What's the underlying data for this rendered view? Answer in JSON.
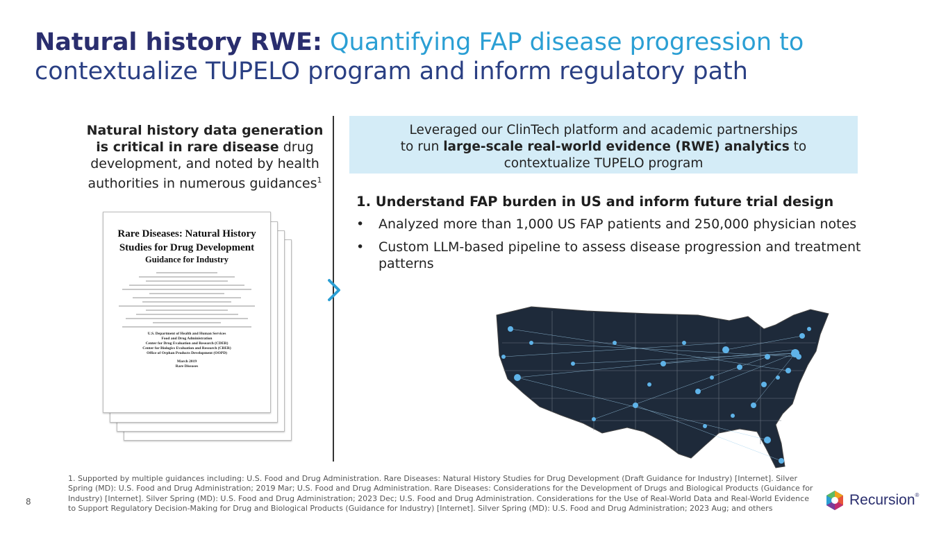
{
  "title": {
    "bold": "Natural history RWE:",
    "line1_rest": " Quantifying FAP disease progression to",
    "line2": "contextualize TUPELO program and inform regulatory path"
  },
  "left_panel": {
    "bold1": "Natural history data generation is critical in rare disease",
    "rest": " drug development, and noted by health authorities in numerous guidances",
    "sup": "1"
  },
  "document": {
    "title": "Rare Diseases: Natural History Studies for Drug Development",
    "subtitle": "Guidance for Industry",
    "footer1": "U.S. Department of Health and Human Services",
    "footer2": "Food and Drug Administration",
    "footer3": "Center for Drug Evaluation and Research (CDER)",
    "footer4": "Center for Biologics Evaluation and Research (CBER)",
    "footer5": "Office of Orphan Products Development (OOPD)",
    "date": "March 2019",
    "category": "Rare Diseases"
  },
  "callout": {
    "line1": "Leveraged our ClinTech platform and academic partnerships",
    "pre": "to run ",
    "bold": "large-scale real-world evidence (RWE) analytics",
    "post": " to",
    "line3": "contextualize TUPELO program"
  },
  "section": {
    "heading": "1. Understand FAP burden in US and inform future trial design",
    "bullets": [
      "Analyzed more than 1,000 US FAP patients and 250,000 physician notes",
      "Custom LLM-based pipeline to assess disease progression and treatment patterns"
    ],
    "bullet_char": "•"
  },
  "footnote": "1. Supported by multiple guidances including: U.S. Food and Drug Administration. Rare Diseases: Natural History Studies for Drug Development (Draft Guidance for Industry) [Internet]. Silver Spring (MD): U.S. Food and Drug Administration; 2019 Mar; U.S. Food and Drug Administration. Rare Diseases: Considerations for the Development of Drugs and Biological Products (Guidance for Industry) [Internet]. Silver Spring (MD): U.S. Food and Drug Administration; 2023 Dec; U.S. Food and Drug Administration. Considerations for the Use of Real-World Data and Real-World Evidence to Support Regulatory Decision-Making for Drug and Biological Products (Guidance for Industry) [Internet]. Silver Spring (MD): U.S. Food and Drug Administration; 2023 Aug; and others",
  "page_number": "8",
  "logo": {
    "text": "Recursion",
    "mark": "®"
  },
  "colors": {
    "navy": "#2a2e6e",
    "accent_blue": "#2b9fd4",
    "callout_bg": "#d4ecf7"
  },
  "icons": {
    "chevron": "chevron-right-icon",
    "map": "us-map-network-icon",
    "logo": "recursion-hexagon-icon"
  }
}
